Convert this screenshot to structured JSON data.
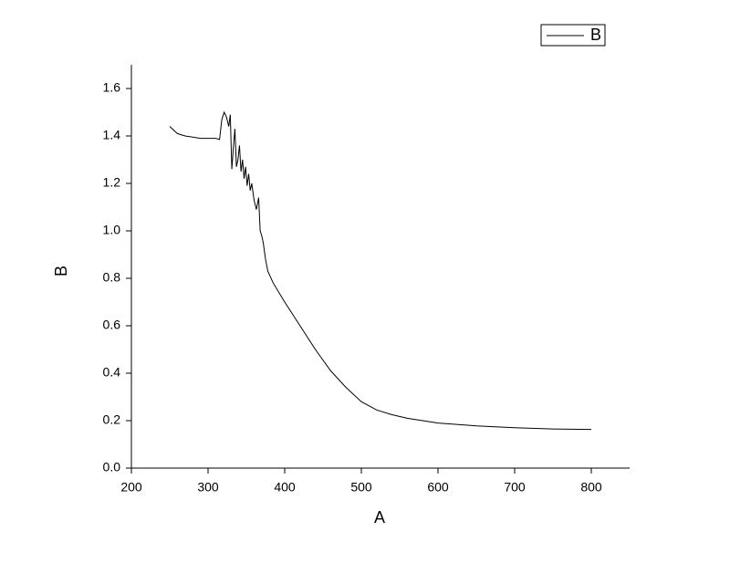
{
  "chart_data": {
    "type": "line",
    "x_label": "A",
    "y_label": "B",
    "x": [
      250,
      255,
      260,
      270,
      280,
      290,
      300,
      310,
      315,
      318,
      321,
      324,
      327,
      329,
      331,
      333,
      335,
      337,
      339,
      341,
      343,
      345,
      347,
      349,
      351,
      353,
      355,
      357,
      360,
      363,
      366,
      368,
      370,
      372,
      375,
      378,
      385,
      400,
      420,
      440,
      460,
      480,
      500,
      520,
      540,
      560,
      600,
      650,
      700,
      750,
      800
    ],
    "series": [
      {
        "name": "B",
        "color": "#000000",
        "values": [
          1.44,
          1.425,
          1.41,
          1.4,
          1.395,
          1.39,
          1.39,
          1.39,
          1.385,
          1.47,
          1.5,
          1.48,
          1.44,
          1.49,
          1.26,
          1.35,
          1.43,
          1.27,
          1.3,
          1.36,
          1.25,
          1.3,
          1.22,
          1.27,
          1.19,
          1.24,
          1.17,
          1.2,
          1.13,
          1.09,
          1.14,
          1.0,
          0.98,
          0.95,
          0.88,
          0.83,
          0.78,
          0.7,
          0.6,
          0.5,
          0.41,
          0.34,
          0.28,
          0.245,
          0.225,
          0.21,
          0.19,
          0.178,
          0.17,
          0.165,
          0.163
        ]
      }
    ],
    "xlim": [
      200,
      850
    ],
    "xticks": [
      200,
      300,
      400,
      500,
      600,
      700,
      800
    ],
    "ylim": [
      0,
      1.7
    ],
    "yticks": [
      {
        "value": 0,
        "label": "0.0"
      },
      0.2,
      0.4,
      0.6,
      0.8,
      {
        "value": 1,
        "label": "1.0"
      },
      1.2,
      1.4,
      1.6
    ],
    "legend": "top-right"
  }
}
